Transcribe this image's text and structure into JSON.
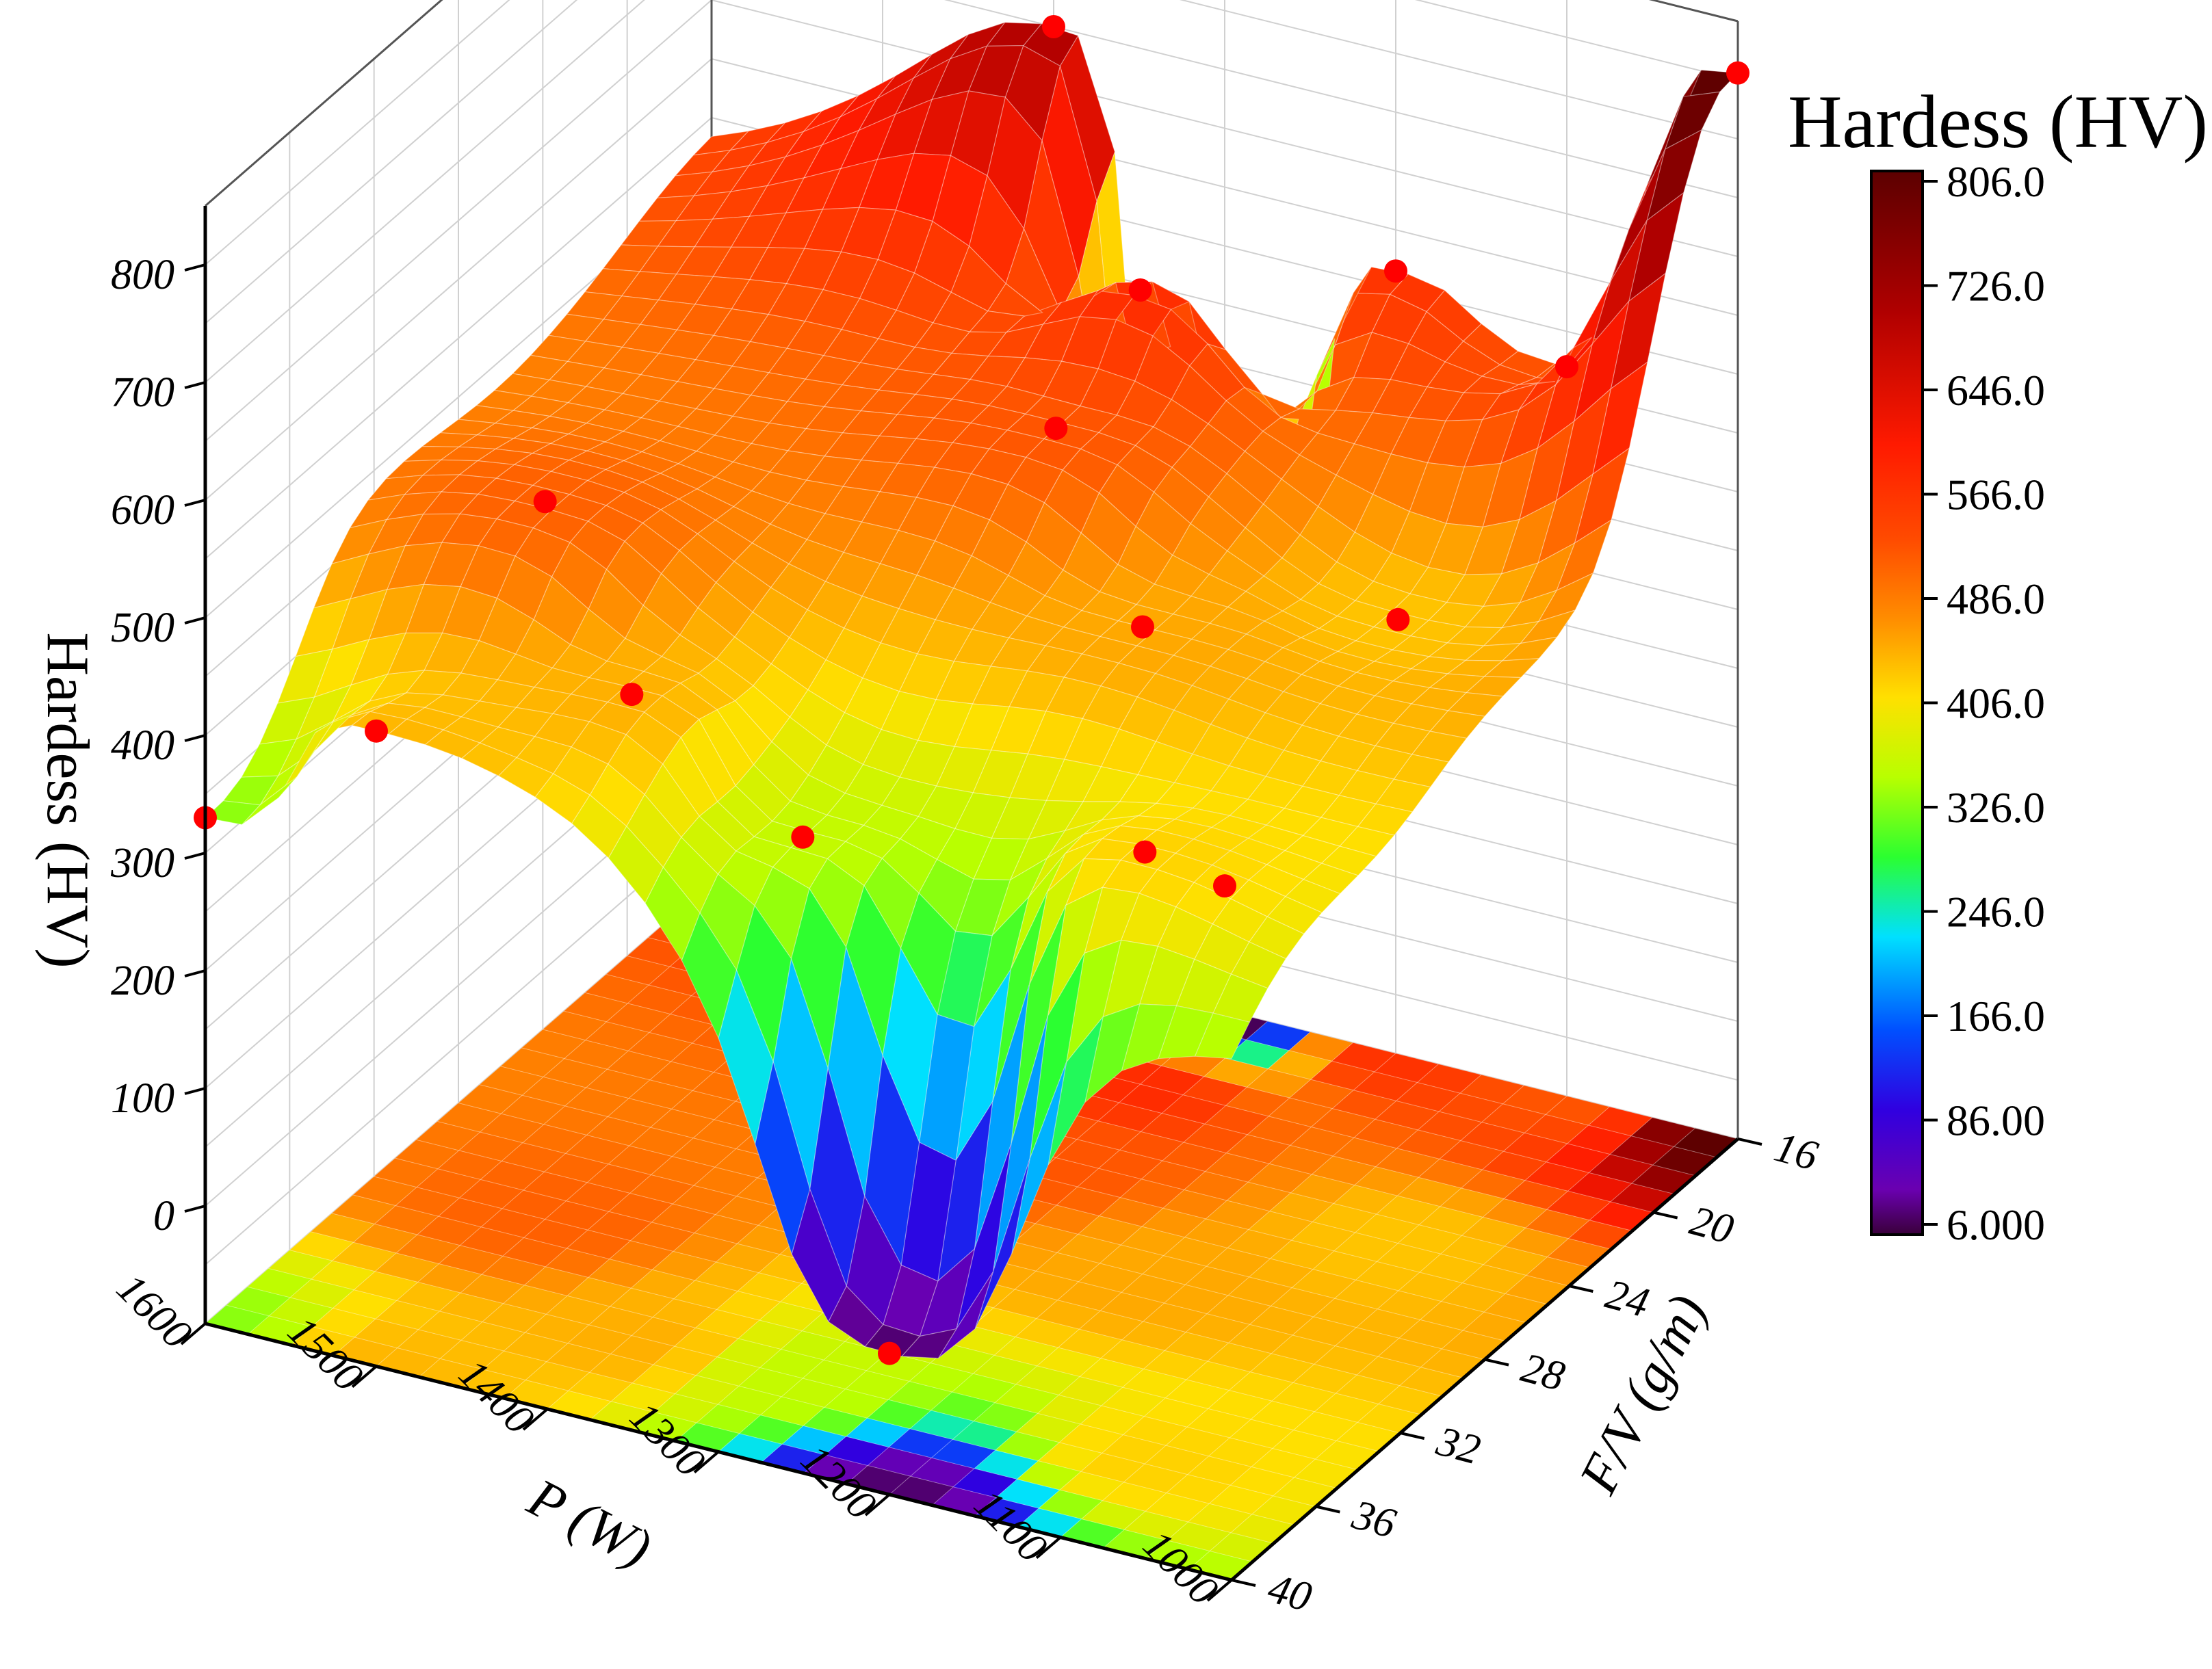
{
  "chart_data": {
    "type": "surface",
    "title": "",
    "xlabel": "P (W)",
    "ylabel": "F/V (g/m)",
    "zlabel": "Hardess (HV)",
    "x_ticks": [
      "1000",
      "1100",
      "1200",
      "1300",
      "1400",
      "1500",
      "1600"
    ],
    "y_ticks": [
      "16",
      "20",
      "24",
      "28",
      "32",
      "36",
      "40"
    ],
    "z_ticks": [
      "0",
      "100",
      "200",
      "300",
      "400",
      "500",
      "600",
      "700",
      "800"
    ],
    "xlim": [
      1000,
      1600
    ],
    "ylim": [
      16,
      40
    ],
    "zlim": [
      -100,
      850
    ],
    "grid": true,
    "projection_floor_contour": true,
    "colorbar": {
      "title": "Hardess (HV)",
      "placement": "right",
      "min": 6.0,
      "max": 806.0,
      "tick_labels": [
        "806.0",
        "726.0",
        "646.0",
        "566.0",
        "486.0",
        "406.0",
        "326.0",
        "246.0",
        "166.0",
        "86.00",
        "6.000"
      ],
      "colors": [
        "#5c0000",
        "#b00000",
        "#ff1a00",
        "#ff4a00",
        "#ff8c00",
        "#ffe000",
        "#b8ff00",
        "#2bff30",
        "#00e0ff",
        "#0050ff",
        "#3000e0",
        "#6a00b0",
        "#3a003a"
      ]
    },
    "points": [
      {
        "P": 1600,
        "FV": 40,
        "hardness": 330
      },
      {
        "P": 1500,
        "FV": 40,
        "hardness": 440
      },
      {
        "P": 1500,
        "FV": 32,
        "hardness": 510
      },
      {
        "P": 1400,
        "FV": 36,
        "hardness": 445
      },
      {
        "P": 1400,
        "FV": 16,
        "hardness": 700
      },
      {
        "P": 1300,
        "FV": 36,
        "hardness": 360
      },
      {
        "P": 1300,
        "FV": 24,
        "hardness": 520
      },
      {
        "P": 1300,
        "FV": 20,
        "hardness": 575
      },
      {
        "P": 1300,
        "FV": 16,
        "hardness": 6
      },
      {
        "P": 1200,
        "FV": 40,
        "hardness": 20
      },
      {
        "P": 1200,
        "FV": 28,
        "hardness": 450
      },
      {
        "P": 1200,
        "FV": 16,
        "hardness": 565
      },
      {
        "P": 1100,
        "FV": 36,
        "hardness": 420
      },
      {
        "P": 1100,
        "FV": 24,
        "hardness": 430
      },
      {
        "P": 1100,
        "FV": 16,
        "hardness": 520
      },
      {
        "P": 1000,
        "FV": 16,
        "hardness": 806
      }
    ],
    "marker_color": "#ff0000"
  }
}
